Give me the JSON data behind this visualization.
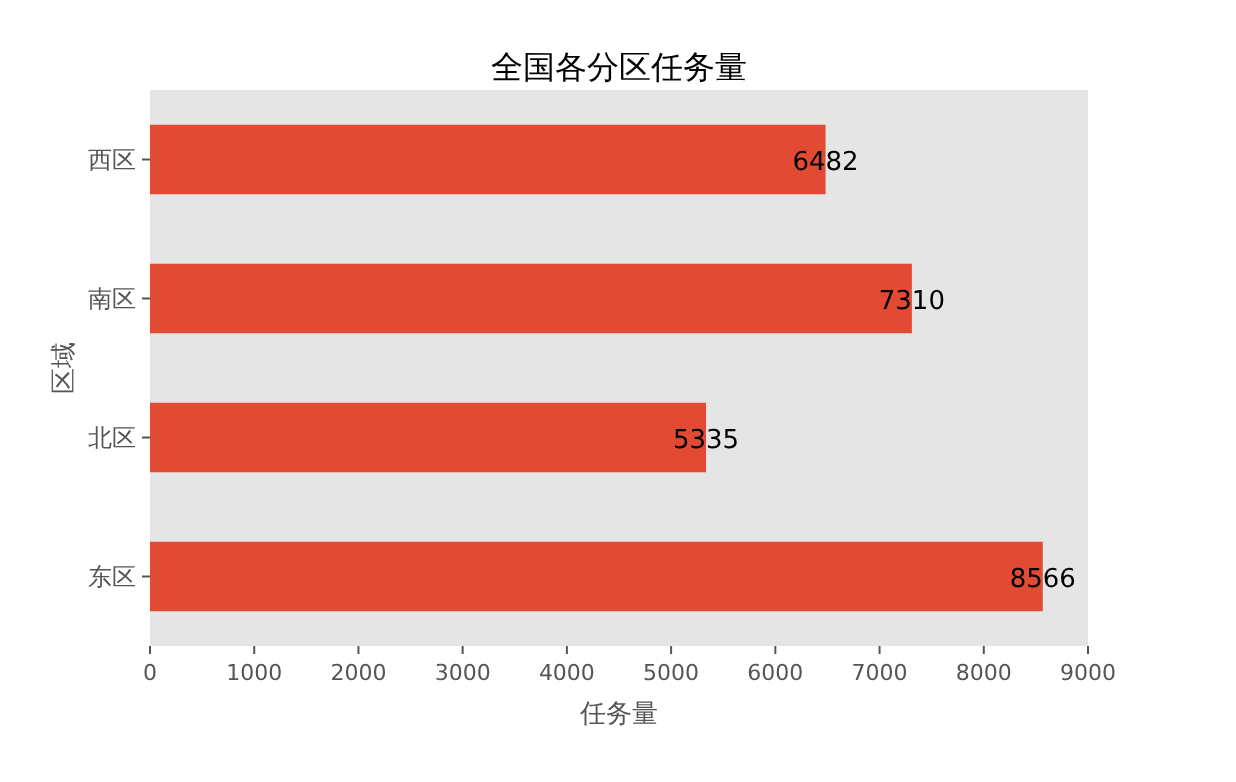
{
  "chart_data": {
    "type": "bar",
    "orientation": "horizontal",
    "title": "全国各分区任务量",
    "xlabel": "任务量",
    "ylabel": "区域",
    "categories": [
      "西区",
      "南区",
      "北区",
      "东区"
    ],
    "values": [
      6482,
      7310,
      5335,
      8566
    ],
    "color": "#e24a33",
    "xlim": [
      0,
      9000
    ],
    "xticks": [
      0,
      1000,
      2000,
      3000,
      4000,
      5000,
      6000,
      7000,
      8000,
      9000
    ],
    "data_labels": true,
    "grid": false
  }
}
